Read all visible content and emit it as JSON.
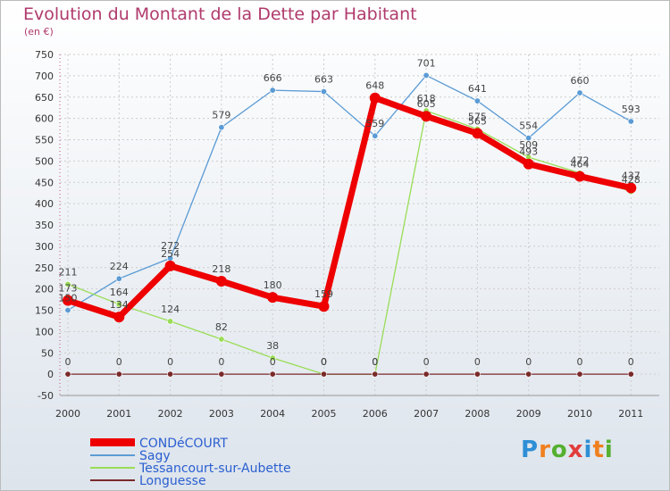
{
  "title": "Evolution du Montant de la Dette par Habitant",
  "subtitle": "(en €)",
  "logo": {
    "letters": [
      "P",
      "r",
      "o",
      "x",
      "i",
      "t",
      "i"
    ],
    "colors": [
      "#2f8fd6",
      "#f07f1e",
      "#55b030",
      "#e23c3c",
      "#2f8fd6",
      "#f07f1e",
      "#55b030"
    ]
  },
  "chart_data": {
    "type": "line",
    "title": "Evolution du Montant de la Dette par Habitant",
    "subtitle": "(en €)",
    "xlabel": "",
    "ylabel": "",
    "categories": [
      "2000",
      "2001",
      "2002",
      "2003",
      "2004",
      "2005",
      "2006",
      "2007",
      "2008",
      "2009",
      "2010",
      "2011"
    ],
    "ylim": [
      -50,
      750
    ],
    "yticks": [
      -50,
      0,
      50,
      100,
      150,
      200,
      250,
      300,
      350,
      400,
      450,
      500,
      550,
      600,
      650,
      700,
      750
    ],
    "grid": true,
    "legend": "bottom-left",
    "series": [
      {
        "name": "Sagy",
        "color": "#5b9bd5",
        "values": [
          150,
          224,
          272,
          579,
          666,
          663,
          559,
          701,
          641,
          554,
          660,
          593
        ]
      },
      {
        "name": "Tessancourt-sur-Aubette",
        "color": "#99dd55",
        "values": [
          211,
          164,
          124,
          82,
          38,
          0,
          0,
          618,
          575,
          509,
          472,
          428
        ]
      },
      {
        "name": "Longuesse",
        "color": "#7a2a2a",
        "values": [
          0,
          0,
          0,
          0,
          0,
          0,
          0,
          0,
          0,
          0,
          0,
          0
        ]
      },
      {
        "name": "CONDéCOURT",
        "color": "#ee0000",
        "values": [
          173,
          134,
          254,
          218,
          180,
          159,
          648,
          605,
          565,
          493,
          464,
          437
        ]
      }
    ]
  }
}
